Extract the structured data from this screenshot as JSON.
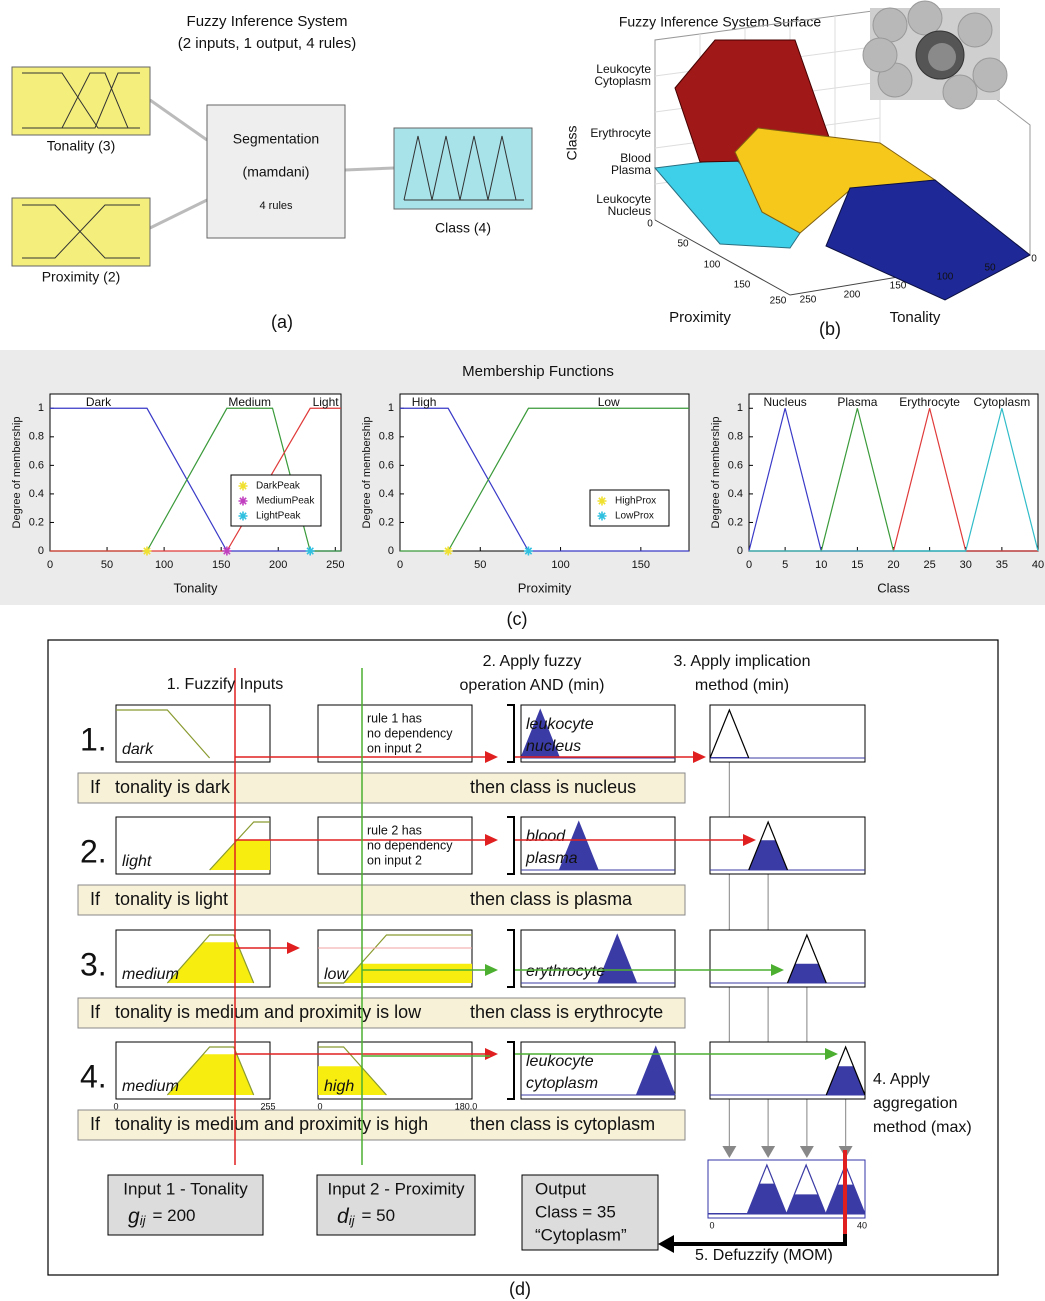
{
  "panel_a": {
    "title": [
      "Fuzzy Inference System",
      "(2 inputs, 1 output, 4 rules)"
    ],
    "inputs": [
      "Tonality (3)",
      "Proximity (2)"
    ],
    "system": [
      "Segmentation",
      "(mamdani)",
      "4 rules"
    ],
    "output": "Class (4)",
    "caption": "(a)"
  },
  "panel_b": {
    "title": "Fuzzy Inference System Surface",
    "z_label": "Class",
    "z_ticks": [
      [
        "Leukocyte",
        "Cytoplasm"
      ],
      [
        "Erythrocyte"
      ],
      [
        "Blood",
        "Plasma"
      ],
      [
        "Leukocyte",
        "Nucleus"
      ]
    ],
    "x_label": "Proximity",
    "x_ticks": [
      0,
      50,
      100,
      150,
      250
    ],
    "y_label": "Tonality",
    "y_ticks": [
      250,
      200,
      150,
      100,
      50,
      0
    ],
    "caption": "(b)"
  },
  "panel_c": {
    "title": "Membership Functions",
    "caption": "(c)"
  },
  "chart_data": [
    {
      "type": "line",
      "x_label": "Tonality",
      "y_label": "Degree of membership",
      "xlim": [
        0,
        255
      ],
      "xticks": [
        0,
        50,
        100,
        150,
        200,
        250
      ],
      "ylim": [
        0,
        1.1
      ],
      "yticks": [
        0,
        0.2,
        0.4,
        0.6,
        0.8,
        1
      ],
      "series": [
        {
          "name": "Dark",
          "color": "#3a3ac8",
          "x": [
            0,
            85,
            155,
            255
          ],
          "values": [
            1,
            1,
            0,
            0
          ]
        },
        {
          "name": "Medium",
          "color": "#3a9a3a",
          "x": [
            0,
            85,
            155,
            195,
            228,
            255
          ],
          "values": [
            0,
            0,
            1,
            1,
            0,
            0
          ]
        },
        {
          "name": "Light",
          "color": "#e03a3a",
          "x": [
            0,
            155,
            228,
            255
          ],
          "values": [
            0,
            0,
            1,
            1
          ]
        }
      ],
      "markers": [
        {
          "name": "DarkPeak",
          "color": "#f0e030",
          "x": 85,
          "y": 0
        },
        {
          "name": "MediumPeak",
          "color": "#c040c0",
          "x": 155,
          "y": 0
        },
        {
          "name": "LightPeak",
          "color": "#30c0e0",
          "x": 228,
          "y": 0
        }
      ],
      "legend": "lower right"
    },
    {
      "type": "line",
      "x_label": "Proximity",
      "y_label": "Degree of membership",
      "xlim": [
        0,
        180
      ],
      "xticks": [
        0,
        50,
        100,
        150
      ],
      "ylim": [
        0,
        1.1
      ],
      "yticks": [
        0,
        0.2,
        0.4,
        0.6,
        0.8,
        1
      ],
      "series": [
        {
          "name": "High",
          "color": "#3a3ac8",
          "x": [
            0,
            30,
            80,
            180
          ],
          "values": [
            1,
            1,
            0,
            0
          ]
        },
        {
          "name": "Low",
          "color": "#3a9a3a",
          "x": [
            0,
            30,
            80,
            180
          ],
          "values": [
            0,
            0,
            1,
            1
          ]
        }
      ],
      "markers": [
        {
          "name": "HighProx",
          "color": "#f0e030",
          "x": 30,
          "y": 0
        },
        {
          "name": "LowProx",
          "color": "#30c0e0",
          "x": 80,
          "y": 0
        }
      ],
      "legend": "lower right"
    },
    {
      "type": "line",
      "x_label": "Class",
      "y_label": "Degree of membership",
      "xlim": [
        0,
        40
      ],
      "xticks": [
        0,
        5,
        10,
        15,
        20,
        25,
        30,
        35,
        40
      ],
      "ylim": [
        0,
        1.1
      ],
      "yticks": [
        0,
        0.2,
        0.4,
        0.6,
        0.8,
        1
      ],
      "series": [
        {
          "name": "Nucleus",
          "color": "#3a3ac8",
          "x": [
            0,
            5,
            10,
            40
          ],
          "values": [
            0,
            1,
            0,
            0
          ]
        },
        {
          "name": "Plasma",
          "color": "#3a9a3a",
          "x": [
            0,
            10,
            15,
            20,
            40
          ],
          "values": [
            0,
            0,
            1,
            0,
            0
          ]
        },
        {
          "name": "Erythrocyte",
          "color": "#e03a3a",
          "x": [
            0,
            20,
            25,
            30,
            40
          ],
          "values": [
            0,
            0,
            1,
            0,
            0
          ]
        },
        {
          "name": "Cytoplasm",
          "color": "#30bcc8",
          "x": [
            0,
            30,
            35,
            40
          ],
          "values": [
            0,
            0,
            1,
            0
          ]
        }
      ]
    }
  ],
  "panel_d": {
    "steps": {
      "fuzzify": "1. Fuzzify Inputs",
      "operation": [
        "2. Apply fuzzy",
        "operation AND (min)"
      ],
      "implication": [
        "3. Apply implication",
        "method (min)"
      ],
      "aggregation": [
        "4. Apply",
        "aggregation",
        "method (max)"
      ],
      "defuzzify": "5. Defuzzify (MOM)"
    },
    "rules": [
      {
        "number": "1.",
        "input1": "dark",
        "input2": [
          "rule 1 has",
          "no dependency",
          "on input 2"
        ],
        "output": [
          "leukocyte",
          "nucleus"
        ],
        "if": "If",
        "antecedent": "tonality is dark",
        "consequent": "then class is nucleus"
      },
      {
        "number": "2.",
        "input1": "light",
        "input2": [
          "rule 2 has",
          "no dependency",
          "on input 2"
        ],
        "output": [
          "blood",
          "plasma"
        ],
        "if": "If",
        "antecedent": "tonality is light",
        "consequent": "then class is plasma"
      },
      {
        "number": "3.",
        "input1": "medium",
        "input2": "low",
        "output": [
          "erythrocyte"
        ],
        "if": "If",
        "antecedent": "tonality is medium and proximity is low",
        "consequent": "then class is erythrocyte"
      },
      {
        "number": "4.",
        "input1": "medium",
        "input2": "high",
        "output": [
          "leukocyte",
          "cytoplasm"
        ],
        "if": "If",
        "antecedent": "tonality is medium and proximity is high",
        "consequent": "then class is cytoplasm"
      }
    ],
    "axis_labels": {
      "input1": [
        "0",
        "255"
      ],
      "input2": [
        "0",
        "180.0"
      ],
      "aggregate": [
        "0",
        "40"
      ]
    },
    "inputs": [
      {
        "title": "Input 1 - Tonality",
        "symbol": "g",
        "subscript": "ij",
        "value": "= 200"
      },
      {
        "title": "Input 2 - Proximity",
        "symbol": "d",
        "subscript": "ij",
        "value": "= 50"
      }
    ],
    "output": [
      "Output",
      "Class = 35",
      "“Cytoplasm”"
    ],
    "caption": "(d)"
  }
}
